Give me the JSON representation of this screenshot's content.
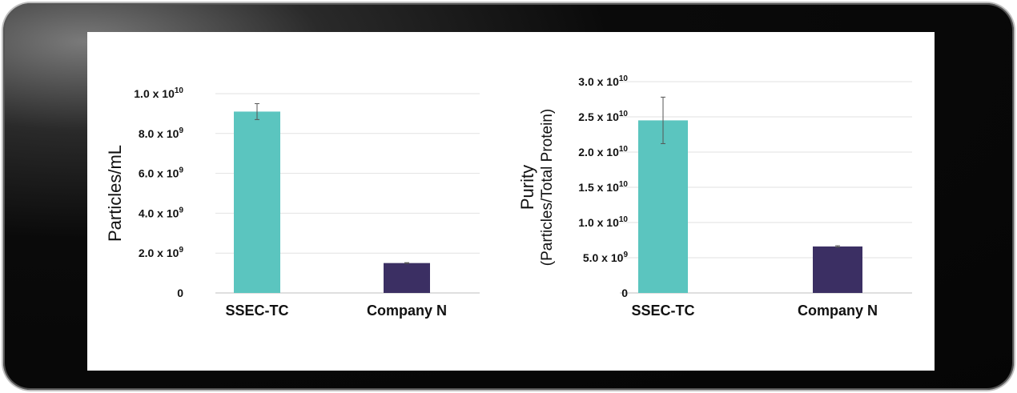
{
  "chart_data": [
    {
      "type": "bar",
      "categories": [
        "SSEC-TC",
        "Company N"
      ],
      "values": [
        9100000000.0,
        1500000000.0
      ],
      "error": [
        400000000.0,
        20000000.0
      ],
      "ylabel": "Particles/mL",
      "ylim": [
        0,
        10000000000.0
      ],
      "yticks": [
        {
          "value": 0,
          "mant": "0",
          "exp": ""
        },
        {
          "value": 2000000000.0,
          "mant": "2.0 x 10",
          "exp": "9"
        },
        {
          "value": 4000000000.0,
          "mant": "4.0 x 10",
          "exp": "9"
        },
        {
          "value": 6000000000.0,
          "mant": "6.0 x 10",
          "exp": "9"
        },
        {
          "value": 8000000000.0,
          "mant": "8.0 x 10",
          "exp": "9"
        },
        {
          "value": 10000000000.0,
          "mant": "1.0 x 10",
          "exp": "10"
        }
      ],
      "grid": true,
      "colors": [
        "#5bc5bf",
        "#3b2f63"
      ]
    },
    {
      "type": "bar",
      "categories": [
        "SSEC-TC",
        "Company N"
      ],
      "values": [
        24500000000.0,
        6600000000.0
      ],
      "error": [
        3300000000.0,
        100000000.0
      ],
      "ylabel": "Purity",
      "ylabel2": "(Particles/Total Protein)",
      "ylim": [
        0,
        30000000000.0
      ],
      "yticks": [
        {
          "value": 0,
          "mant": "0",
          "exp": ""
        },
        {
          "value": 5000000000.0,
          "mant": "5.0 x 10",
          "exp": "9"
        },
        {
          "value": 10000000000.0,
          "mant": "1.0 x 10",
          "exp": "10"
        },
        {
          "value": 15000000000.0,
          "mant": "1.5 x 10",
          "exp": "10"
        },
        {
          "value": 20000000000.0,
          "mant": "2.0 x 10",
          "exp": "10"
        },
        {
          "value": 25000000000.0,
          "mant": "2.5 x 10",
          "exp": "10"
        },
        {
          "value": 30000000000.0,
          "mant": "3.0 x 10",
          "exp": "10"
        }
      ],
      "grid": true,
      "colors": [
        "#5bc5bf",
        "#3b2f63"
      ]
    }
  ]
}
